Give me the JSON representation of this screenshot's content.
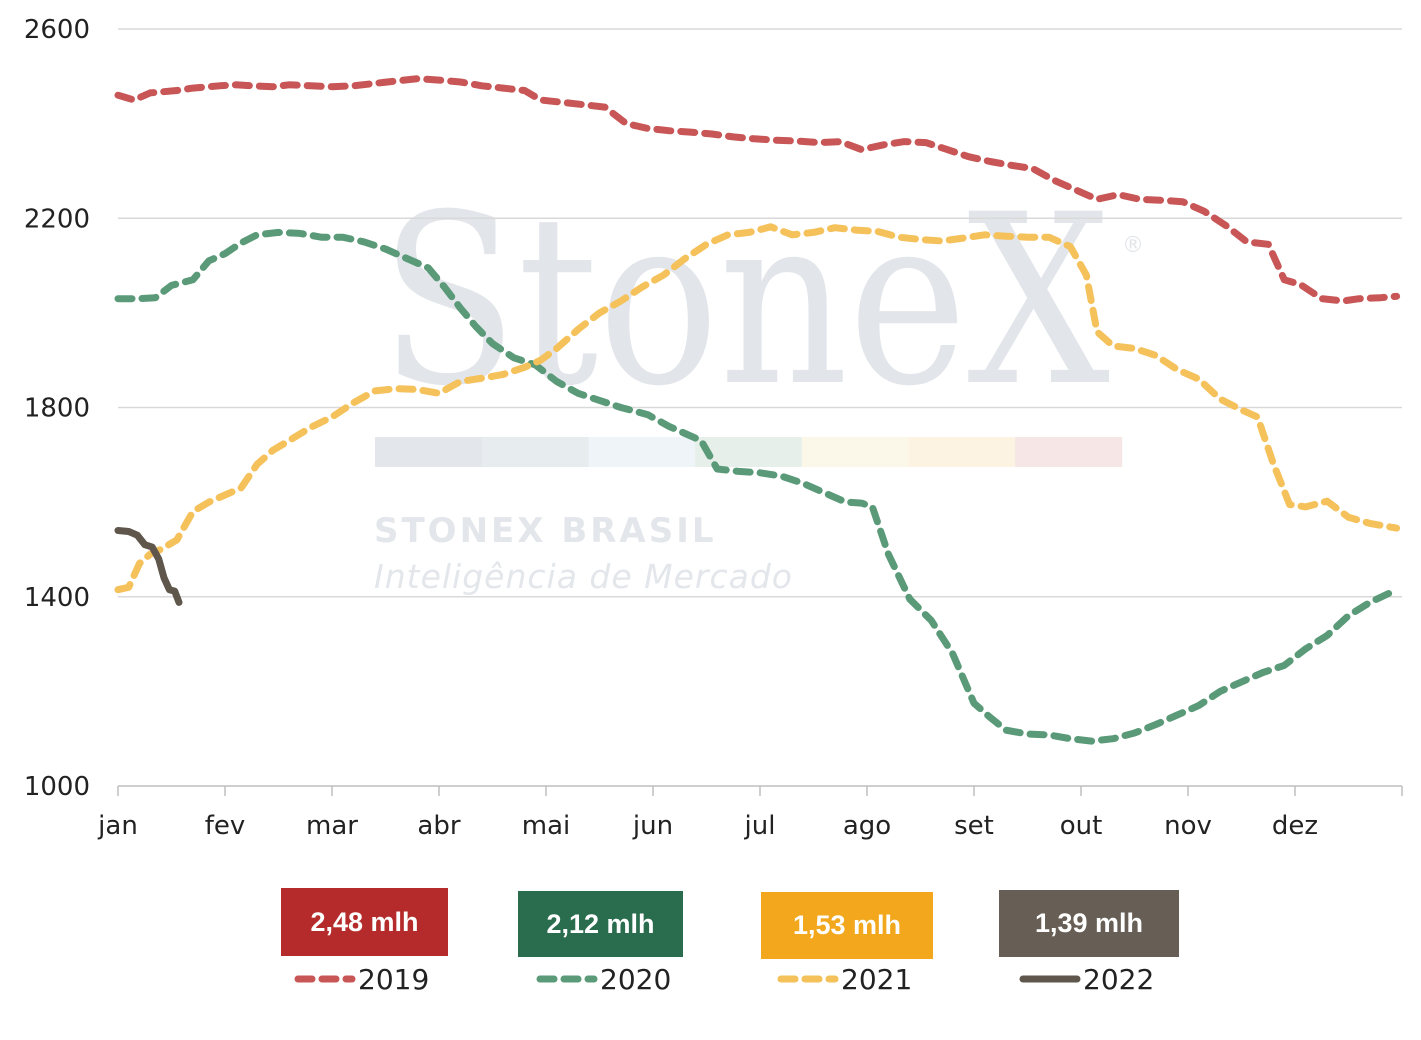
{
  "watermark": {
    "brand": "StoneX",
    "registered": "®",
    "subtitle": "STONEX BRASIL",
    "tagline": "Inteligência de Mercado",
    "stripe_colors": [
      "#e3e6eb",
      "#e7ecef",
      "#eef4f8",
      "#e6efe9",
      "#fbf8ea",
      "#fcf3e3",
      "#f6e6e6"
    ]
  },
  "chart_data": {
    "type": "line",
    "title": "",
    "xlabel": "",
    "ylabel": "",
    "ylim": [
      1000,
      2600
    ],
    "yticks": [
      1000,
      1400,
      1800,
      2200,
      2600
    ],
    "xlim": [
      0,
      12
    ],
    "month_ticks": [
      "jan",
      "fev",
      "mar",
      "abr",
      "mai",
      "jun",
      "jul",
      "ago",
      "set",
      "out",
      "nov",
      "dez"
    ],
    "grid": true,
    "legend_placement": "bottom",
    "series": [
      {
        "name": "2019",
        "color": "#c85656",
        "dash": "dashed",
        "x": [
          0,
          0.15,
          0.3,
          0.55,
          0.7,
          0.95,
          1.1,
          1.25,
          1.45,
          1.6,
          1.8,
          2.0,
          2.2,
          2.4,
          2.6,
          2.8,
          3.0,
          3.2,
          3.4,
          3.6,
          3.8,
          3.95,
          4.15,
          4.35,
          4.55,
          4.75,
          4.95,
          5.15,
          5.35,
          5.55,
          5.75,
          5.95,
          6.15,
          6.35,
          6.55,
          6.75,
          6.95,
          7.15,
          7.35,
          7.55,
          7.75,
          7.95,
          8.15,
          8.35,
          8.55,
          8.75,
          8.95,
          9.15,
          9.35,
          9.55,
          9.75,
          9.95,
          10.15,
          10.35,
          10.55,
          10.75,
          10.9,
          11.05,
          11.25,
          11.45,
          11.6,
          11.8,
          11.95
        ],
        "values": [
          2460,
          2450,
          2465,
          2470,
          2475,
          2480,
          2482,
          2480,
          2478,
          2482,
          2480,
          2478,
          2480,
          2485,
          2490,
          2495,
          2492,
          2488,
          2480,
          2475,
          2470,
          2450,
          2445,
          2440,
          2435,
          2400,
          2390,
          2385,
          2382,
          2378,
          2372,
          2368,
          2365,
          2363,
          2360,
          2362,
          2345,
          2355,
          2362,
          2360,
          2345,
          2330,
          2320,
          2312,
          2305,
          2280,
          2260,
          2240,
          2250,
          2240,
          2238,
          2235,
          2215,
          2185,
          2150,
          2145,
          2070,
          2060,
          2030,
          2025,
          2030,
          2032,
          2035
        ]
      },
      {
        "name": "2020",
        "color": "#5a9a78",
        "dash": "dashed",
        "x": [
          0,
          0.2,
          0.35,
          0.5,
          0.7,
          0.85,
          1.0,
          1.15,
          1.3,
          1.5,
          1.7,
          1.9,
          2.1,
          2.3,
          2.5,
          2.7,
          2.9,
          3.05,
          3.2,
          3.35,
          3.5,
          3.7,
          3.9,
          4.1,
          4.3,
          4.5,
          4.7,
          4.95,
          5.15,
          5.3,
          5.45,
          5.6,
          5.8,
          6.0,
          6.2,
          6.4,
          6.6,
          6.8,
          6.95,
          7.05,
          7.2,
          7.4,
          7.6,
          7.8,
          8.0,
          8.15,
          8.3,
          8.5,
          8.7,
          8.9,
          9.1,
          9.3,
          9.5,
          9.7,
          9.9,
          10.1,
          10.3,
          10.5,
          10.7,
          10.9,
          11.1,
          11.3,
          11.5,
          11.7,
          11.95
        ],
        "values": [
          2030,
          2030,
          2032,
          2058,
          2070,
          2110,
          2125,
          2148,
          2165,
          2170,
          2168,
          2160,
          2160,
          2150,
          2135,
          2115,
          2095,
          2055,
          2010,
          1970,
          1935,
          1905,
          1890,
          1855,
          1830,
          1815,
          1800,
          1785,
          1760,
          1745,
          1730,
          1670,
          1665,
          1662,
          1655,
          1640,
          1620,
          1600,
          1598,
          1590,
          1490,
          1395,
          1350,
          1280,
          1175,
          1145,
          1118,
          1110,
          1108,
          1100,
          1095,
          1100,
          1112,
          1130,
          1150,
          1170,
          1200,
          1220,
          1240,
          1255,
          1290,
          1318,
          1360,
          1388,
          1415
        ]
      },
      {
        "name": "2021",
        "color": "#f5c15a",
        "dash": "dashed",
        "x": [
          0,
          0.1,
          0.2,
          0.3,
          0.4,
          0.55,
          0.7,
          0.85,
          1.0,
          1.15,
          1.3,
          1.45,
          1.6,
          1.8,
          2.0,
          2.2,
          2.4,
          2.6,
          2.8,
          3.0,
          3.2,
          3.4,
          3.6,
          3.8,
          3.95,
          4.1,
          4.3,
          4.5,
          4.7,
          4.9,
          5.1,
          5.3,
          5.5,
          5.7,
          5.9,
          6.1,
          6.3,
          6.5,
          6.7,
          6.9,
          7.1,
          7.3,
          7.5,
          7.7,
          7.9,
          8.1,
          8.3,
          8.5,
          8.7,
          8.9,
          9.05,
          9.15,
          9.3,
          9.5,
          9.7,
          9.9,
          10.1,
          10.3,
          10.5,
          10.65,
          10.8,
          10.95,
          11.1,
          11.3,
          11.5,
          11.7,
          11.95
        ],
        "values": [
          1415,
          1420,
          1470,
          1490,
          1500,
          1520,
          1580,
          1600,
          1615,
          1630,
          1680,
          1710,
          1730,
          1758,
          1780,
          1810,
          1835,
          1840,
          1838,
          1830,
          1855,
          1862,
          1870,
          1885,
          1900,
          1925,
          1965,
          2000,
          2025,
          2055,
          2080,
          2115,
          2145,
          2165,
          2170,
          2182,
          2165,
          2170,
          2180,
          2175,
          2172,
          2160,
          2155,
          2152,
          2158,
          2165,
          2162,
          2160,
          2160,
          2140,
          2080,
          1960,
          1930,
          1925,
          1910,
          1880,
          1860,
          1818,
          1795,
          1780,
          1680,
          1595,
          1590,
          1602,
          1568,
          1555,
          1545
        ]
      },
      {
        "name": "2022",
        "color": "#5f564c",
        "dash": "solid",
        "x": [
          0,
          0.1,
          0.18,
          0.25,
          0.32,
          0.38,
          0.43,
          0.48,
          0.53,
          0.57
        ],
        "values": [
          1540,
          1538,
          1530,
          1510,
          1505,
          1480,
          1440,
          1415,
          1412,
          1388
        ]
      }
    ]
  },
  "badges": [
    {
      "text": "2,48 mlh",
      "color": "#b52a2a"
    },
    {
      "text": "2,12 mlh",
      "color": "#2a6d4e"
    },
    {
      "text": "1,53 mlh",
      "color": "#f2a71d"
    },
    {
      "text": "1,39 mlh",
      "color": "#675f55"
    }
  ]
}
